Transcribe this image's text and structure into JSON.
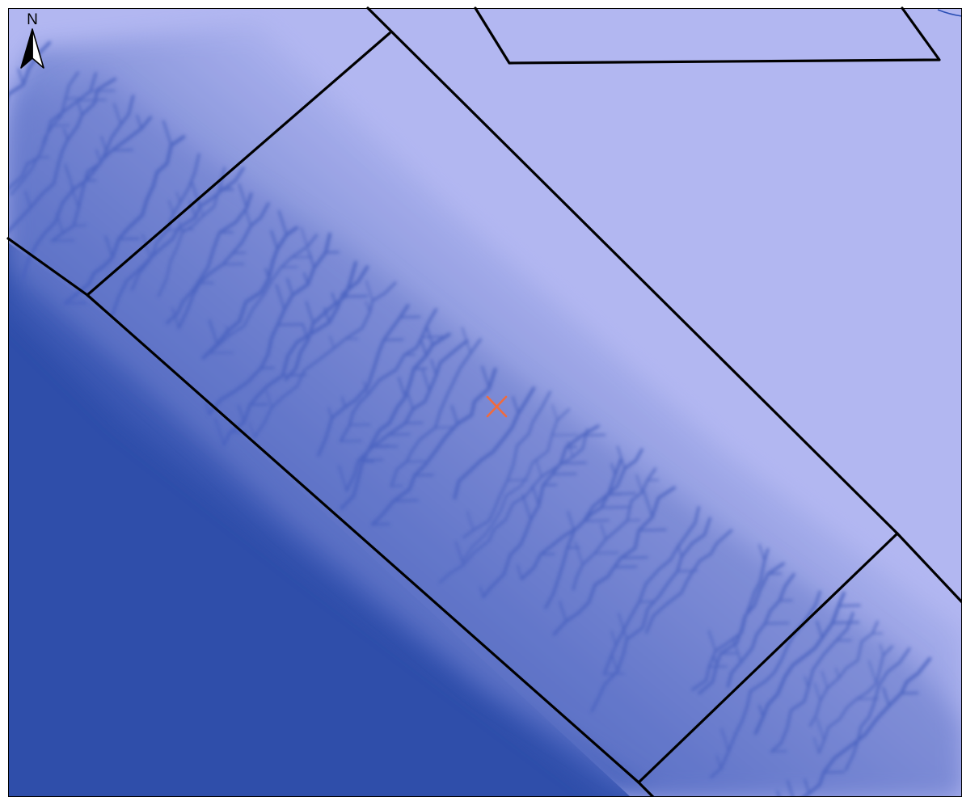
{
  "map": {
    "background_color": "#2f4eaa",
    "plateau_color": "#b2b7f1",
    "boundary_color": "#000000",
    "marker": {
      "name": "x-marker",
      "color": "#f06b3d"
    }
  },
  "north_arrow": {
    "label": "N",
    "icon": "north-arrow-icon"
  }
}
